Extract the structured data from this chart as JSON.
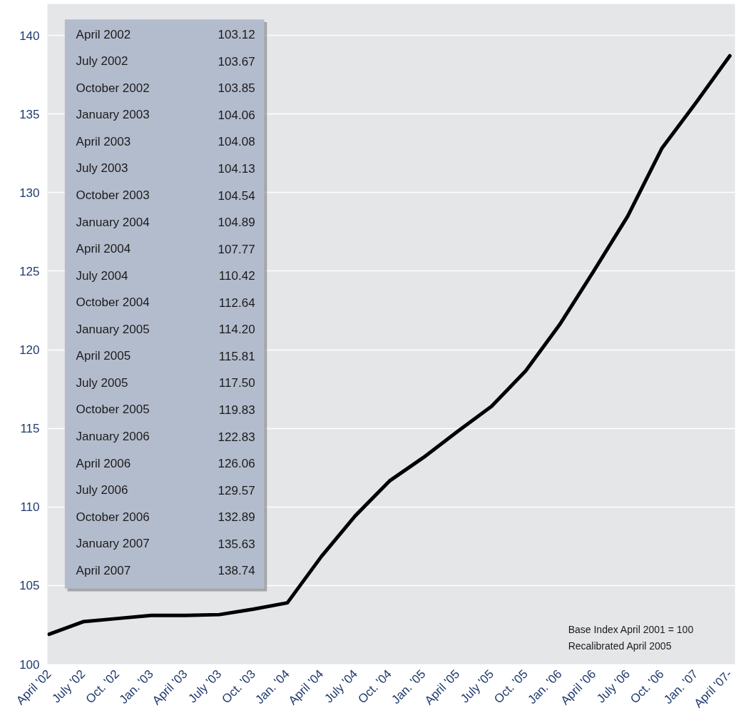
{
  "chart_data": {
    "type": "line",
    "categories": [
      "April '02",
      "July '02",
      "Oct. '02",
      "Jan. '03",
      "April '03",
      "July '03",
      "Oct. '03",
      "Jan. '04",
      "April '04",
      "July '04",
      "Oct. '04",
      "Jan. '05",
      "April '05",
      "July '05",
      "Oct. '05",
      "Jan. '06",
      "April '06",
      "July '06",
      "Oct. '06",
      "Jan. '07",
      "April '07-"
    ],
    "series": [
      {
        "color": "#000000",
        "values": [
          101.9,
          102.7,
          102.9,
          103.1,
          103.1,
          103.15,
          103.5,
          103.9,
          106.85,
          109.45,
          111.65,
          113.15,
          114.8,
          116.4,
          118.65,
          121.6,
          125.0,
          128.5,
          132.8,
          135.7,
          138.7
        ]
      }
    ],
    "ylim": [
      100,
      142
    ],
    "yticks": [
      100,
      105,
      110,
      115,
      120,
      125,
      130,
      135,
      140
    ],
    "grid": "y",
    "line_style": "solid",
    "annotations": [
      "April 2002",
      "103.12",
      "July 2002",
      "103.67",
      "October 2002",
      "103.85",
      "January 2003",
      "104.06",
      "April 2003",
      "104.08",
      "July 2003",
      "104.13",
      "October 2003",
      "104.54",
      "January 2004",
      "104.89",
      "April 2004",
      "107.77",
      "July 2004",
      "110.42",
      "October 2004",
      "112.64",
      "January 2005",
      "114.20",
      "April 2005",
      "115.81",
      "July 2005",
      "117.50",
      "October 2005",
      "119.83",
      "January 2006",
      "122.83",
      "April 2006",
      "126.06",
      "July 2006",
      "129.57",
      "October 2006",
      "132.89",
      "January 2007",
      "135.63",
      "April 2007",
      "138.74",
      "Base Index April 2001 = 100",
      "Recalibrated April 2005"
    ]
  }
}
